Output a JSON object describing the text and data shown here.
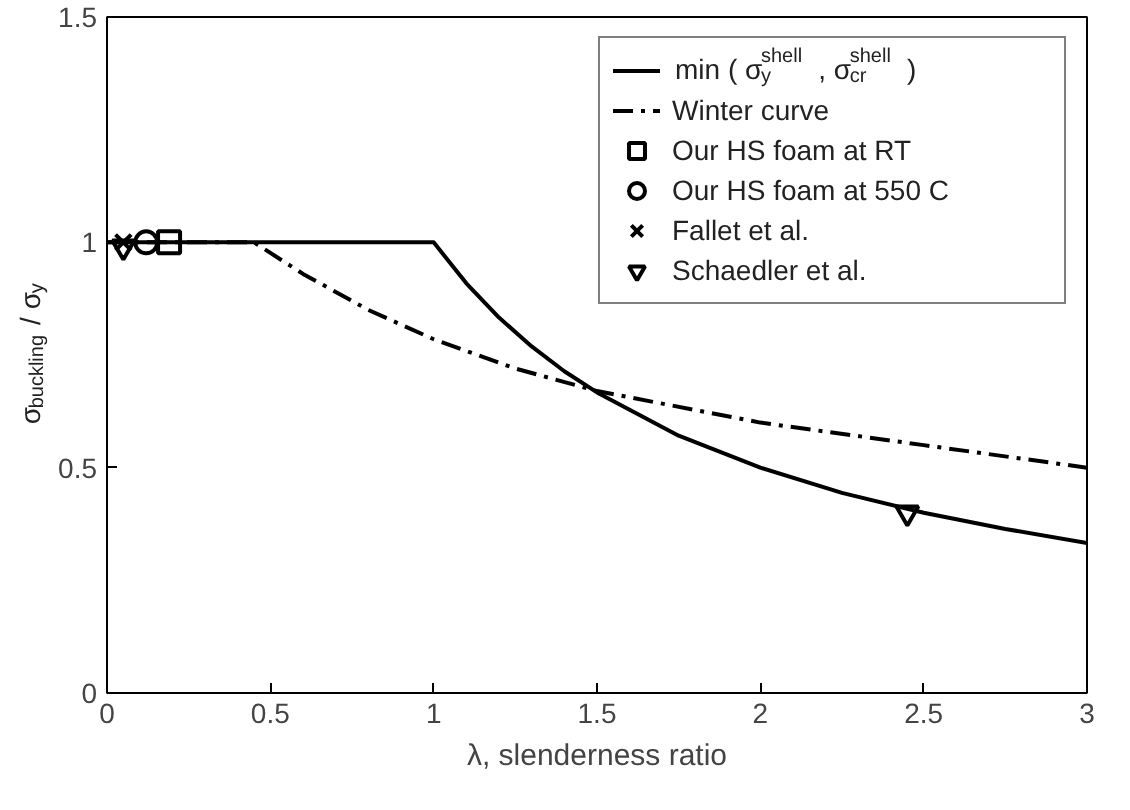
{
  "chart_data": {
    "type": "line",
    "xlabel": "λ, slenderness ratio",
    "ylabel": "σ$_{buckling}$ / σ$_{y}$",
    "xlim": [
      0,
      3
    ],
    "ylim": [
      0,
      1.5
    ],
    "xticks": [
      0,
      0.5,
      1,
      1.5,
      2,
      2.5,
      3
    ],
    "yticks": [
      0,
      0.5,
      1,
      1.5
    ],
    "grid": false,
    "legend": "top right",
    "series": [
      {
        "name": "min ( σ$_{y}$$^{shell}$ , σ$_{cr}$$^{shell}$ )",
        "line_style": "solid",
        "color": "#000000",
        "x": [
          0,
          1,
          1.1,
          1.2,
          1.3,
          1.4,
          1.5,
          1.75,
          2,
          2.25,
          2.5,
          2.75,
          3
        ],
        "values": [
          1,
          1,
          0.909,
          0.833,
          0.769,
          0.714,
          0.667,
          0.571,
          0.5,
          0.444,
          0.4,
          0.364,
          0.333
        ]
      },
      {
        "name": "Winter curve",
        "line_style": "dashdot",
        "color": "#000000",
        "x": [
          0,
          0.45,
          0.6,
          0.8,
          1,
          1.25,
          1.5,
          2,
          2.5,
          3
        ],
        "values": [
          1,
          1,
          0.93,
          0.85,
          0.785,
          0.72,
          0.67,
          0.6,
          0.55,
          0.5
        ]
      },
      {
        "name": "Our HS foam at RT",
        "type": "scatter",
        "marker": "square",
        "color": "#000000",
        "x": [
          0.19
        ],
        "values": [
          1
        ]
      },
      {
        "name": "Our HS foam at 550 C",
        "type": "scatter",
        "marker": "circle",
        "color": "#000000",
        "x": [
          0.12
        ],
        "values": [
          1
        ]
      },
      {
        "name": "Fallet et al.",
        "type": "scatter",
        "marker": "cross",
        "color": "#000000",
        "x": [
          0.05
        ],
        "values": [
          1
        ]
      },
      {
        "name": "Schaedler et al.",
        "type": "scatter",
        "marker": "triangle",
        "color": "#000000",
        "x": [
          2.45,
          0.05
        ],
        "values": [
          0.4,
          0.99
        ]
      }
    ]
  }
}
